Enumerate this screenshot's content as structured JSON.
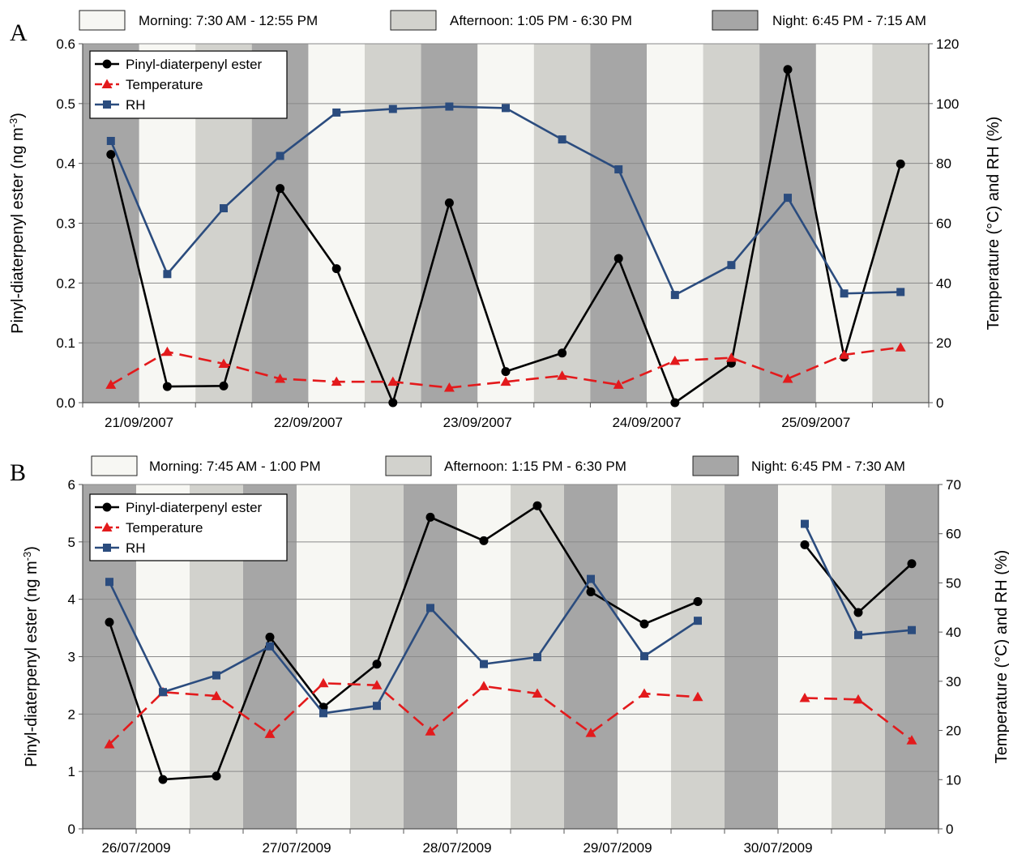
{
  "colors": {
    "morning": "#f7f7f3",
    "afternoon": "#d2d2cd",
    "night": "#a6a6a6",
    "ester": "#000000",
    "temperature": "#e31a1c",
    "rh": "#2b4c7e"
  },
  "chart_data": [
    {
      "type": "line",
      "panel": "A",
      "periods": [
        {
          "key": "morning",
          "label": "Morning: 7:30 AM - 12:55 PM"
        },
        {
          "key": "afternoon",
          "label": "Afternoon: 1:05 PM - 6:30 PM"
        },
        {
          "key": "night",
          "label": "Night: 6:45 PM - 7:15 AM"
        }
      ],
      "bands": [
        "night",
        "morning",
        "afternoon",
        "night",
        "morning",
        "afternoon",
        "night",
        "morning",
        "afternoon",
        "night",
        "morning",
        "afternoon",
        "night",
        "morning",
        "afternoon"
      ],
      "x_tick_labels": [
        "21/09/2007",
        "22/09/2007",
        "23/09/2007",
        "24/09/2007",
        "25/09/2007"
      ],
      "x_tick_label_slots": [
        1,
        4,
        7,
        10,
        13
      ],
      "ylabel": "Pinyl-diaterpenyl ester (ng m⁻³)",
      "ylabel_parts": [
        "Pinyl-diaterpenyl ester (ng m",
        "-3",
        ")"
      ],
      "y2label": "Temperature (°C) and RH (%)",
      "ylim": [
        0,
        0.6
      ],
      "y_ticks": [
        "0.0",
        "0.1",
        "0.2",
        "0.3",
        "0.4",
        "0.5",
        "0.6"
      ],
      "y2lim": [
        0,
        120
      ],
      "y2_ticks": [
        "0",
        "20",
        "40",
        "60",
        "80",
        "100",
        "120"
      ],
      "grid": true,
      "legend": "top-left",
      "series": [
        {
          "name": "Pinyl-diaterpenyl ester",
          "axis": "left",
          "marker": "circle",
          "dash": "solid",
          "values": [
            0.415,
            0.027,
            0.028,
            0.358,
            0.224,
            0.0,
            0.334,
            0.052,
            0.083,
            0.241,
            0.0,
            0.066,
            0.557,
            0.076,
            0.399
          ]
        },
        {
          "name": "Temperature",
          "axis": "right",
          "marker": "triangle",
          "dash": "dashed",
          "values": [
            6,
            17,
            13,
            8,
            7,
            7,
            5,
            7,
            9,
            6,
            14,
            15,
            8,
            16,
            18.5
          ]
        },
        {
          "name": "RH",
          "axis": "right",
          "marker": "square",
          "dash": "solid",
          "values": [
            87.5,
            43,
            65,
            82.5,
            97,
            98.2,
            99,
            98.5,
            88,
            78,
            36,
            46,
            68.5,
            36.5,
            37
          ]
        }
      ]
    },
    {
      "type": "line",
      "panel": "B",
      "periods": [
        {
          "key": "morning",
          "label": "Morning: 7:45 AM - 1:00 PM"
        },
        {
          "key": "afternoon",
          "label": "Afternoon: 1:15 PM - 6:30 PM"
        },
        {
          "key": "night",
          "label": "Night: 6:45 PM - 7:30 AM"
        }
      ],
      "bands": [
        "night",
        "morning",
        "afternoon",
        "night",
        "morning",
        "afternoon",
        "night",
        "morning",
        "afternoon",
        "night",
        "morning",
        "afternoon",
        "night",
        "morning",
        "afternoon",
        "night"
      ],
      "x_tick_labels": [
        "26/07/2009",
        "27/07/2009",
        "28/07/2009",
        "29/07/2009",
        "30/07/2009"
      ],
      "x_tick_label_slots": [
        1,
        4,
        7,
        10,
        13
      ],
      "ylabel": "Pinyl-diaterpenyl ester (ng m⁻³)",
      "ylabel_parts": [
        "Pinyl-diaterpenyl ester (ng m",
        "-3",
        ")"
      ],
      "y2label": "Temperature (°C) and RH (%)",
      "ylim": [
        0,
        6
      ],
      "y_ticks": [
        "0",
        "1",
        "2",
        "3",
        "4",
        "5",
        "6"
      ],
      "y2lim": [
        0,
        70
      ],
      "y2_ticks": [
        "0",
        "10",
        "20",
        "30",
        "40",
        "50",
        "60",
        "70"
      ],
      "grid": true,
      "legend": "top-left",
      "series": [
        {
          "name": "Pinyl-diaterpenyl ester",
          "axis": "left",
          "marker": "circle",
          "dash": "solid",
          "values": [
            3.6,
            0.86,
            0.92,
            3.34,
            2.12,
            2.87,
            5.43,
            5.02,
            5.63,
            4.13,
            3.57,
            3.96,
            null,
            4.95,
            3.77,
            4.62
          ]
        },
        {
          "name": "Temperature",
          "axis": "right",
          "marker": "triangle",
          "dash": "dashed",
          "values": [
            17.2,
            27.8,
            27.0,
            19.3,
            29.6,
            29.2,
            19.8,
            29.0,
            27.5,
            19.5,
            27.5,
            26.8,
            null,
            26.6,
            26.3,
            18.0
          ]
        },
        {
          "name": "RH",
          "axis": "right",
          "marker": "square",
          "dash": "solid",
          "values": [
            50.2,
            27.8,
            31.2,
            37.1,
            23.5,
            25.0,
            44.9,
            33.5,
            34.9,
            50.8,
            35.1,
            42.3,
            null,
            62.0,
            39.4,
            40.4
          ]
        }
      ]
    }
  ]
}
